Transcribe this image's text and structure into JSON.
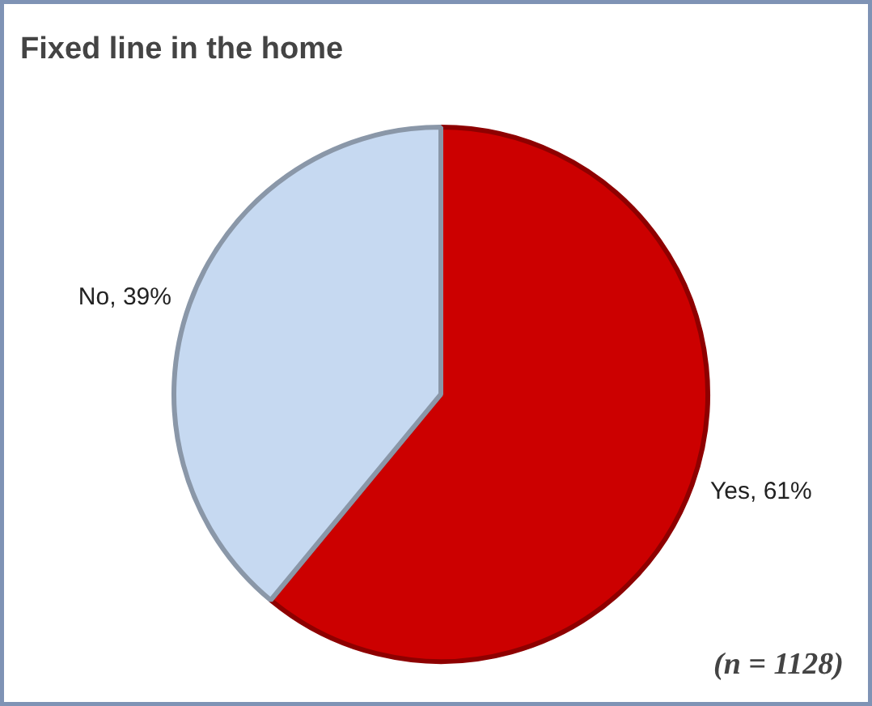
{
  "chart_data": {
    "type": "pie",
    "title": "Fixed line in the home",
    "categories": [
      "Yes",
      "No"
    ],
    "values": [
      61,
      39
    ],
    "colors": [
      "#cc0000",
      "#c6d9f1"
    ],
    "value_labels": [
      "61%",
      "39%"
    ],
    "annotations": [
      "(n = 1128)"
    ],
    "legend": false
  }
}
